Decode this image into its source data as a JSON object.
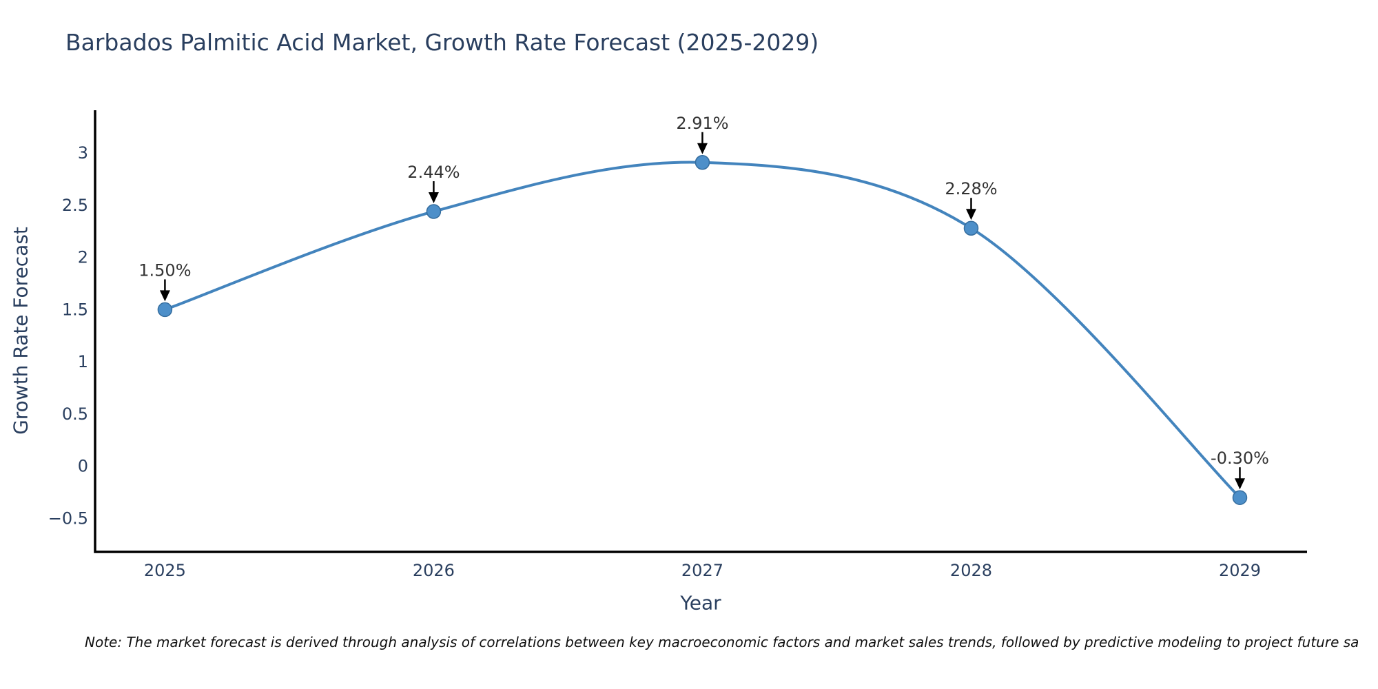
{
  "title": "Barbados Palmitic Acid Market, Growth Rate Forecast (2025-2029)",
  "note": "Note: The market forecast is derived through analysis of correlations between key macroeconomic factors and market sales trends, followed by predictive modeling to project future sa",
  "colors": {
    "line": "#4384bd",
    "marker": "#4d8fc9",
    "marker_edge": "#356d9e",
    "axis": "#000000",
    "arrow": "#000000",
    "chart_text": "#2a3f5f",
    "annotation_text": "#333333",
    "note_text": "#111111",
    "background": "#ffffff"
  },
  "chart_data": {
    "type": "line",
    "line_shape": "spline",
    "title": "Barbados Palmitic Acid Market, Growth Rate Forecast (2025-2029)",
    "xlabel": "Year",
    "ylabel": "Growth Rate Forecast",
    "x": [
      2025,
      2026,
      2027,
      2028,
      2029
    ],
    "y": [
      1.5,
      2.44,
      2.91,
      2.28,
      -0.3
    ],
    "point_labels": [
      "1.50%",
      "2.44%",
      "2.91%",
      "2.28%",
      "-0.30%"
    ],
    "xtick_labels": [
      "2025",
      "2026",
      "2027",
      "2028",
      "2029"
    ],
    "ytick_values": [
      3,
      2.5,
      2,
      1.5,
      1,
      0.5,
      0,
      -0.5
    ],
    "ytick_labels": [
      "3",
      "2.5",
      "2",
      "1.5",
      "1",
      "0.5",
      "0",
      "−0.5"
    ],
    "xlim": [
      2024.74,
      2029.25
    ],
    "ylim": [
      -0.82,
      3.41
    ],
    "grid": false,
    "legend": "none",
    "markers": true,
    "annotation_arrows": true
  }
}
